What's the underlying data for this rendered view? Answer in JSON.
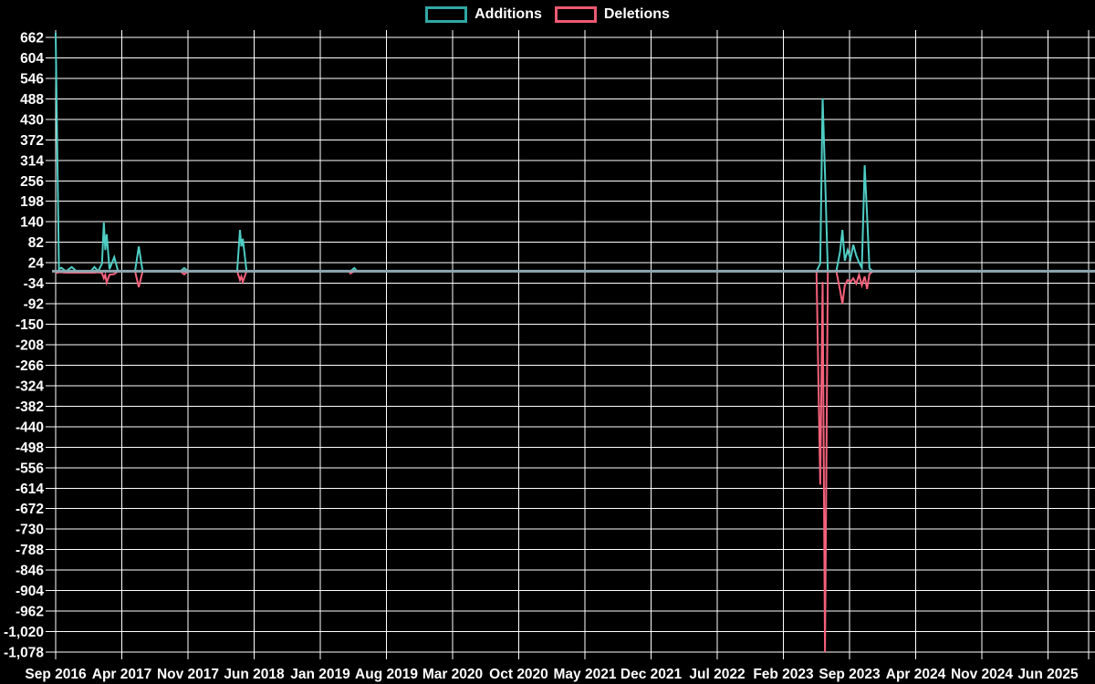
{
  "legend": {
    "additions_label": "Additions",
    "deletions_label": "Deletions"
  },
  "chart_data": {
    "type": "line",
    "title": "",
    "legend_position": "top-center",
    "grid": true,
    "background_color": "#000000",
    "grid_color": "#ffffff",
    "text_color": "#ffffff",
    "zero_line_color": "#8fa8b2",
    "x_tick_labels": [
      "Sep 2016",
      "Apr 2017",
      "Nov 2017",
      "Jun 2018",
      "Jan 2019",
      "Aug 2019",
      "Mar 2020",
      "Oct 2020",
      "May 2021",
      "Dec 2021",
      "Jul 2022",
      "Feb 2023",
      "Sep 2023",
      "Apr 2024",
      "Nov 2024",
      "Jun 2025"
    ],
    "x_tick_interval_months": 7,
    "y_tick_labels": [
      "662",
      "604",
      "546",
      "488",
      "430",
      "372",
      "314",
      "256",
      "198",
      "140",
      "82",
      "24",
      "-34",
      "-92",
      "-150",
      "-208",
      "-266",
      "-324",
      "-382",
      "-440",
      "-498",
      "-556",
      "-614",
      "-672",
      "-730",
      "-788",
      "-846",
      "-904",
      "-962",
      "-1,020",
      "-1,078"
    ],
    "y_axis": {
      "max": 662,
      "min": -1078,
      "step": 58
    },
    "series": [
      {
        "name": "Additions",
        "color": "#4ecdc4",
        "legend_box_color": "#2fa8a5"
      },
      {
        "name": "Deletions",
        "color": "#f4617b",
        "legend_box_color": "#ee5a72"
      }
    ],
    "x_unit": "months since Sep 2016",
    "points_format": [
      "months_since_sep_2016",
      "additions",
      "deletions"
    ],
    "points": [
      [
        0,
        675,
        -5
      ],
      [
        0.35,
        6,
        -3
      ],
      [
        0.6,
        10,
        -3
      ],
      [
        1.1,
        0,
        -4
      ],
      [
        1.7,
        12,
        -4
      ],
      [
        2.2,
        0,
        -4
      ],
      [
        3.7,
        0,
        -4
      ],
      [
        4.1,
        12,
        -4
      ],
      [
        4.5,
        0,
        -3
      ],
      [
        4.9,
        22,
        -5
      ],
      [
        5.1,
        138,
        -20
      ],
      [
        5.25,
        60,
        -10
      ],
      [
        5.4,
        105,
        -32
      ],
      [
        5.7,
        6,
        -10
      ],
      [
        6.2,
        40,
        -8
      ],
      [
        6.6,
        0,
        0
      ],
      [
        8.4,
        0,
        0
      ],
      [
        8.8,
        70,
        -45
      ],
      [
        9.2,
        0,
        0
      ],
      [
        13.2,
        0,
        0
      ],
      [
        13.6,
        9,
        -9
      ],
      [
        14,
        0,
        0
      ],
      [
        19.2,
        0,
        0
      ],
      [
        19.5,
        117,
        -25
      ],
      [
        19.65,
        70,
        -15
      ],
      [
        19.8,
        92,
        -30
      ],
      [
        20.2,
        0,
        0
      ],
      [
        31,
        0,
        0
      ],
      [
        31.2,
        0,
        -6
      ],
      [
        31.6,
        9,
        0
      ],
      [
        31.9,
        0,
        0
      ],
      [
        80.5,
        0,
        0
      ],
      [
        80.9,
        22,
        -604
      ],
      [
        81.15,
        490,
        -30
      ],
      [
        81.4,
        277,
        -1078
      ],
      [
        81.7,
        0,
        -2
      ],
      [
        82.6,
        0,
        0
      ],
      [
        83,
        55,
        -53
      ],
      [
        83.25,
        117,
        -92
      ],
      [
        83.5,
        30,
        -40
      ],
      [
        83.8,
        60,
        -25
      ],
      [
        84.1,
        35,
        -30
      ],
      [
        84.4,
        75,
        -20
      ],
      [
        84.7,
        45,
        -35
      ],
      [
        85,
        25,
        -10
      ],
      [
        85.3,
        10,
        -40
      ],
      [
        85.6,
        300,
        -15
      ],
      [
        85.85,
        160,
        -50
      ],
      [
        86.1,
        8,
        -8
      ],
      [
        86.5,
        0,
        0
      ],
      [
        110,
        0,
        0
      ]
    ]
  }
}
